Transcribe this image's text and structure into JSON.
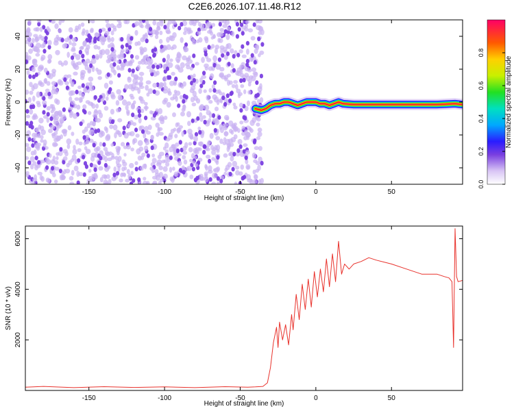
{
  "title": "C2E6.2026.107.11.48.R12",
  "colors": {
    "noise": "#7a3fe0",
    "noise_light": "#c9b2f2",
    "snr_line": "#e8302a",
    "axis": "#000000"
  },
  "chart_data": [
    {
      "type": "heatmap",
      "id": "spectrogram",
      "title": "C2E6.2026.107.11.48.R12",
      "xlabel": "Height of straight line (km)",
      "ylabel": "Frequency (Hz)",
      "xlim": [
        -192,
        97
      ],
      "ylim": [
        -50,
        50
      ],
      "xticks": [
        -150,
        -100,
        -50,
        0,
        50
      ],
      "yticks": [
        -40,
        -20,
        0,
        20,
        40
      ],
      "noise_region_x": [
        -192,
        -38
      ],
      "signal_track": {
        "x": [
          -40,
          -36,
          -33,
          -30,
          -27,
          -24,
          -21,
          -18,
          -15,
          -12,
          -9,
          -6,
          -3,
          0,
          3,
          6,
          9,
          12,
          15,
          18,
          25,
          40,
          60,
          80,
          92,
          97
        ],
        "freq": [
          -4,
          -5,
          -4,
          -2,
          -1,
          -1,
          0,
          0,
          -1,
          -2,
          -1,
          0,
          0,
          0,
          -1,
          -1,
          -2,
          -1,
          0,
          -1,
          -1.5,
          -1.5,
          -1.5,
          -1.5,
          -1,
          -1.5
        ]
      },
      "colorbar": {
        "label": "Normalized spectral amplitude",
        "range": [
          0.0,
          1.0
        ],
        "ticks": [
          "0.0",
          "0.2",
          "0.4",
          "0.6",
          "0.8"
        ]
      }
    },
    {
      "type": "line",
      "id": "snr",
      "xlabel": "Height of straight line (km)",
      "ylabel": "SNR (10 * v/v)",
      "xlim": [
        -192,
        97
      ],
      "ylim": [
        0,
        6500
      ],
      "xticks": [
        -150,
        -100,
        -50,
        0,
        50
      ],
      "yticks": [
        2000,
        4000,
        6000
      ],
      "series": [
        {
          "name": "SNR",
          "color": "#e8302a",
          "x": [
            -192,
            -180,
            -160,
            -140,
            -120,
            -100,
            -80,
            -60,
            -45,
            -40,
            -35,
            -32,
            -30,
            -28,
            -26,
            -25,
            -24,
            -22,
            -20,
            -18,
            -16,
            -15,
            -13,
            -11,
            -9,
            -7,
            -5,
            -3,
            -1,
            1,
            3,
            5,
            7,
            9,
            11,
            13,
            15,
            17,
            19,
            22,
            25,
            30,
            35,
            40,
            50,
            60,
            70,
            80,
            85,
            88,
            90,
            91,
            92,
            93,
            94,
            97
          ],
          "y": [
            130,
            160,
            110,
            150,
            120,
            140,
            110,
            150,
            130,
            140,
            160,
            300,
            900,
            1900,
            2500,
            1700,
            2700,
            2000,
            2600,
            1800,
            3000,
            2400,
            3800,
            2800,
            4200,
            3200,
            4400,
            3300,
            4700,
            3700,
            4800,
            3900,
            5200,
            4100,
            5400,
            4300,
            5900,
            4600,
            5000,
            4800,
            5000,
            5100,
            5250,
            5150,
            5000,
            4800,
            4600,
            4600,
            4500,
            4450,
            4300,
            1700,
            6400,
            4500,
            4300,
            4350
          ]
        }
      ]
    }
  ]
}
